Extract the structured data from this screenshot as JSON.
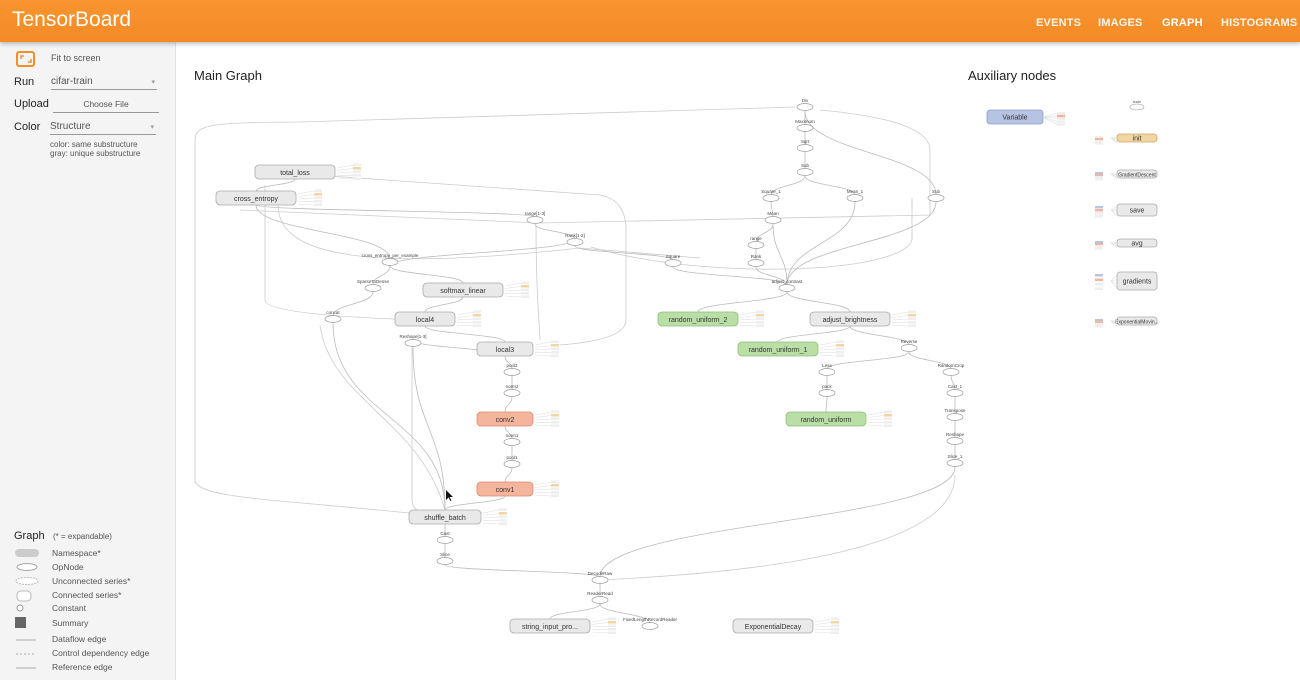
{
  "header": {
    "title": "TensorBoard",
    "tabs": [
      {
        "label": "EVENTS"
      },
      {
        "label": "IMAGES"
      },
      {
        "label": "GRAPH",
        "active": true
      },
      {
        "label": "HISTOGRAMS"
      }
    ],
    "color": "#f58d29"
  },
  "sidebar": {
    "fit_label": "Fit to screen",
    "run_label": "Run",
    "run_value": "cifar-train",
    "upload_label": "Upload",
    "upload_button": "Choose File",
    "color_label": "Color",
    "color_value": "Structure",
    "color_note1": "color: same substructure",
    "color_note2": "gray: unique substructure",
    "legend_title": "Graph",
    "legend_note": "(* = expandable)",
    "legend": [
      "Namespace*",
      "OpNode",
      "Unconnected series*",
      "Connected series*",
      "Constant",
      "Summary",
      "Dataflow edge",
      "Control dependency edge",
      "Reference edge"
    ]
  },
  "main": {
    "title": "Main Graph",
    "aux_title": "Auxiliary nodes"
  },
  "colors": {
    "gray": "#e9e9e9",
    "orange": "#f4b59c",
    "green": "#b9dfa6",
    "blue": "#b7c3e3",
    "tan": "#f1d5a2"
  },
  "nodes": [
    {
      "id": "total_loss",
      "label": "total_loss",
      "kind": "ns",
      "color": "gray"
    },
    {
      "id": "cross_entropy",
      "label": "cross_entropy",
      "kind": "ns",
      "color": "gray"
    },
    {
      "id": "softmax_linear",
      "label": "softmax_linear",
      "kind": "ns",
      "color": "gray"
    },
    {
      "id": "local4",
      "label": "local4",
      "kind": "ns",
      "color": "gray"
    },
    {
      "id": "local3",
      "label": "local3",
      "kind": "ns",
      "color": "gray"
    },
    {
      "id": "conv2",
      "label": "conv2",
      "kind": "ns",
      "color": "orange"
    },
    {
      "id": "conv1",
      "label": "conv1",
      "kind": "ns",
      "color": "orange"
    },
    {
      "id": "shuffle_batch",
      "label": "shuffle_batch",
      "kind": "ns",
      "color": "gray"
    },
    {
      "id": "random_uniform_2",
      "label": "random_uniform_2",
      "kind": "ns",
      "color": "green"
    },
    {
      "id": "adjust_brightness",
      "label": "adjust_brightness",
      "kind": "ns",
      "color": "gray"
    },
    {
      "id": "random_uniform_1",
      "label": "random_uniform_1",
      "kind": "ns",
      "color": "green"
    },
    {
      "id": "random_uniform",
      "label": "random_uniform",
      "kind": "ns",
      "color": "green"
    },
    {
      "id": "string_input",
      "label": "string_input_pro...",
      "kind": "ns",
      "color": "gray"
    },
    {
      "id": "ExponentialDecay",
      "label": "ExponentialDecay",
      "kind": "ns",
      "color": "gray"
    },
    {
      "id": "Div",
      "label": "Div",
      "kind": "op"
    },
    {
      "id": "Maximum",
      "label": "Maximum",
      "kind": "op"
    },
    {
      "id": "Sqrt",
      "label": "Sqrt",
      "kind": "op"
    },
    {
      "id": "Sub",
      "label": "Sub",
      "kind": "op"
    },
    {
      "id": "Square_1",
      "label": "Square_1",
      "kind": "op"
    },
    {
      "id": "Mean_1",
      "label": "Mean_1",
      "kind": "op"
    },
    {
      "id": "Sub2",
      "label": "Sub",
      "kind": "op"
    },
    {
      "id": "range13",
      "label": "range[1-3]",
      "kind": "op"
    },
    {
      "id": "Rank12",
      "label": "Rank[1-2]",
      "kind": "op"
    },
    {
      "id": "Mean",
      "label": "Mean",
      "kind": "op"
    },
    {
      "id": "range",
      "label": "range",
      "kind": "op"
    },
    {
      "id": "Rank",
      "label": "Rank",
      "kind": "op"
    },
    {
      "id": "Square",
      "label": "Square",
      "kind": "op"
    },
    {
      "id": "adjust_contrast",
      "label": "adjust_contrast",
      "kind": "op"
    },
    {
      "id": "cepe",
      "label": "cross_entropy_per_example",
      "kind": "op"
    },
    {
      "id": "SparseToDense",
      "label": "SparseToDense",
      "kind": "op"
    },
    {
      "id": "concat",
      "label": "concat",
      "kind": "op"
    },
    {
      "id": "Reshape13",
      "label": "Reshape[1-3]",
      "kind": "op"
    },
    {
      "id": "pool2",
      "label": "pool2",
      "kind": "op"
    },
    {
      "id": "norm2",
      "label": "norm2",
      "kind": "op"
    },
    {
      "id": "norm1",
      "label": "norm1",
      "kind": "op"
    },
    {
      "id": "pool1",
      "label": "pool1",
      "kind": "op"
    },
    {
      "id": "Reverse",
      "label": "Reverse",
      "kind": "op"
    },
    {
      "id": "Less",
      "label": "Less",
      "kind": "op"
    },
    {
      "id": "RandomCrop",
      "label": "RandomCrop",
      "kind": "op"
    },
    {
      "id": "pack",
      "label": "pack",
      "kind": "op"
    },
    {
      "id": "Cast_1",
      "label": "Cast_1",
      "kind": "op"
    },
    {
      "id": "Transpose",
      "label": "Transpose",
      "kind": "op"
    },
    {
      "id": "Reshape",
      "label": "Reshape",
      "kind": "op"
    },
    {
      "id": "Slice_1",
      "label": "Slice_1",
      "kind": "op"
    },
    {
      "id": "Cast",
      "label": "Cast",
      "kind": "op"
    },
    {
      "id": "Slice",
      "label": "Slice",
      "kind": "op"
    },
    {
      "id": "DecodeRaw",
      "label": "DecodeRaw",
      "kind": "op"
    },
    {
      "id": "ReaderRead",
      "label": "ReaderRead",
      "kind": "op"
    },
    {
      "id": "FLRR",
      "label": "FixedLengthRecordReader",
      "kind": "op"
    }
  ],
  "edges": [
    [
      "Maximum",
      "Div"
    ],
    [
      "Sqrt",
      "Maximum"
    ],
    [
      "Sub",
      "Sqrt"
    ],
    [
      "Square_1",
      "Sub"
    ],
    [
      "Mean_1",
      "Sub"
    ],
    [
      "Sub2",
      "Div"
    ],
    [
      "Mean",
      "Square_1"
    ],
    [
      "range",
      "Mean"
    ],
    [
      "Rank",
      "range"
    ],
    [
      "adjust_contrast",
      "Rank"
    ],
    [
      "adjust_contrast",
      "Square"
    ],
    [
      "adjust_contrast",
      "Mean"
    ],
    [
      "adjust_contrast",
      "Sub2"
    ],
    [
      "adjust_contrast",
      "Mean_1"
    ],
    [
      "random_uniform_2",
      "adjust_contrast"
    ],
    [
      "adjust_brightness",
      "adjust_contrast"
    ],
    [
      "random_uniform_1",
      "adjust_brightness"
    ],
    [
      "Reverse",
      "adjust_brightness"
    ],
    [
      "Less",
      "Reverse"
    ],
    [
      "RandomCrop",
      "Reverse"
    ],
    [
      "pack",
      "Less"
    ],
    [
      "random_uniform",
      "pack"
    ],
    [
      "Cast_1",
      "RandomCrop"
    ],
    [
      "Transpose",
      "Cast_1"
    ],
    [
      "Reshape",
      "Transpose"
    ],
    [
      "Slice_1",
      "Reshape"
    ],
    [
      "cross_entropy",
      "total_loss"
    ],
    [
      "Rank12",
      "range13"
    ],
    [
      "Rank12",
      "cepe"
    ],
    [
      "cepe",
      "cross_entropy"
    ],
    [
      "SparseToDense",
      "cepe"
    ],
    [
      "softmax_linear",
      "cepe"
    ],
    [
      "concat",
      "SparseToDense"
    ],
    [
      "local4",
      "softmax_linear"
    ],
    [
      "local3",
      "local4"
    ],
    [
      "Reshape13",
      "local3"
    ],
    [
      "pool2",
      "local3"
    ],
    [
      "norm2",
      "pool2"
    ],
    [
      "conv2",
      "norm2"
    ],
    [
      "norm1",
      "conv2"
    ],
    [
      "pool1",
      "norm1"
    ],
    [
      "conv1",
      "pool1"
    ],
    [
      "shuffle_batch",
      "conv1"
    ],
    [
      "shuffle_batch",
      "Reshape13"
    ],
    [
      "shuffle_batch",
      "concat"
    ],
    [
      "Cast",
      "shuffle_batch"
    ],
    [
      "Slice",
      "Cast"
    ],
    [
      "DecodeRaw",
      "Slice"
    ],
    [
      "DecodeRaw",
      "Slice_1"
    ],
    [
      "ReaderRead",
      "DecodeRaw"
    ],
    [
      "string_input",
      "ReaderRead"
    ],
    [
      "FLRR",
      "ReaderRead"
    ],
    [
      "range13",
      "cross_entropy"
    ],
    [
      "Square",
      "Rank12"
    ]
  ],
  "aux_nodes": [
    {
      "id": "Variable",
      "label": "Variable",
      "color": "blue"
    },
    {
      "id": "train",
      "label": "train",
      "color": "op"
    },
    {
      "id": "init",
      "label": "init",
      "color": "tan"
    },
    {
      "id": "GradientDescent",
      "label": "GradientDescent",
      "color": "gray"
    },
    {
      "id": "save",
      "label": "save",
      "color": "gray"
    },
    {
      "id": "avg",
      "label": "avg",
      "color": "gray"
    },
    {
      "id": "gradients",
      "label": "gradients",
      "color": "gray"
    },
    {
      "id": "ExponentialMovin",
      "label": "ExponentialMovin...",
      "color": "gray"
    }
  ]
}
